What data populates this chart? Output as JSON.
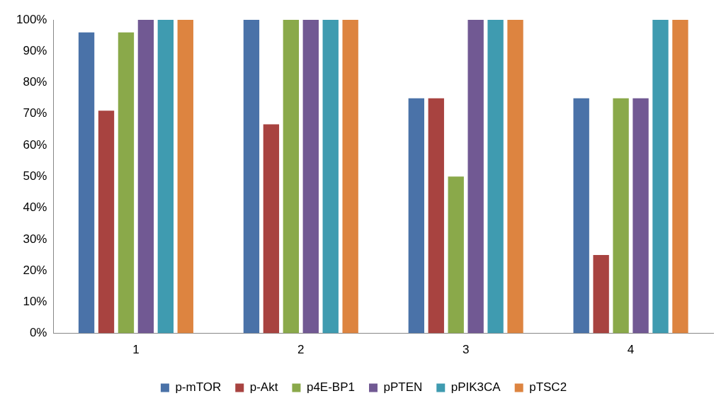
{
  "chart_data": {
    "type": "bar",
    "categories": [
      "1",
      "2",
      "3",
      "4"
    ],
    "series": [
      {
        "name": "p-mTOR",
        "color": "#4a72a8",
        "values": [
          96,
          100,
          75,
          75
        ]
      },
      {
        "name": "p-Akt",
        "color": "#a84340",
        "values": [
          71,
          66.7,
          75,
          25
        ]
      },
      {
        "name": "p4E-BP1",
        "color": "#8aa94a",
        "values": [
          96,
          100,
          50,
          75
        ]
      },
      {
        "name": "pPTEN",
        "color": "#715993",
        "values": [
          100,
          100,
          100,
          75
        ]
      },
      {
        "name": "pPIK3CA",
        "color": "#3f9bb0",
        "values": [
          100,
          100,
          100,
          100
        ]
      },
      {
        "name": "pTSC2",
        "color": "#dd8440",
        "values": [
          100,
          100,
          100,
          100
        ]
      }
    ],
    "ylim": [
      0,
      100
    ],
    "yticks": [
      {
        "value": 0,
        "label": "0%"
      },
      {
        "value": 10,
        "label": "10%"
      },
      {
        "value": 20,
        "label": "20%"
      },
      {
        "value": 30,
        "label": "30%"
      },
      {
        "value": 40,
        "label": "40%"
      },
      {
        "value": 50,
        "label": "50%"
      },
      {
        "value": 60,
        "label": "60%"
      },
      {
        "value": 70,
        "label": "70%"
      },
      {
        "value": 80,
        "label": "80%"
      },
      {
        "value": 90,
        "label": "90%"
      },
      {
        "value": 100,
        "label": "100%"
      }
    ],
    "grid": false,
    "legend": "bottom"
  }
}
